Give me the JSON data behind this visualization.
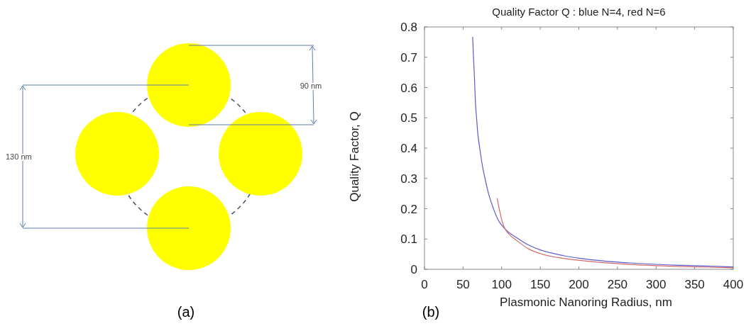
{
  "chart_data": [
    {
      "type": "other",
      "annotations": [
        "130 nm",
        "90 nm",
        "(a)"
      ]
    },
    {
      "type": "line",
      "title": "Quality Factor Q :  blue N=4, red N=6",
      "xlabel": "Plasmonic Nanoring Radius, nm",
      "ylabel": "Quality Factor, Q",
      "xlim": [
        0,
        400
      ],
      "ylim": [
        0,
        0.8
      ],
      "xticks": [
        0,
        50,
        100,
        150,
        200,
        250,
        300,
        350,
        400
      ],
      "yticks": [
        0,
        0.1,
        0.2,
        0.3,
        0.4,
        0.5,
        0.6,
        0.7,
        0.8
      ],
      "grid": false,
      "annotations": [
        "(b)"
      ],
      "series": [
        {
          "color": "#5b5bd0",
          "x": [
            62.4,
            63.5,
            64.8,
            66,
            67.5,
            69,
            71.6,
            74.5,
            78.4,
            83,
            88.7,
            95,
            104.5,
            121,
            135,
            150,
            180,
            215,
            266,
            334,
            400
          ],
          "values": [
            0.767,
            0.7,
            0.63,
            0.55,
            0.5,
            0.45,
            0.4,
            0.35,
            0.3,
            0.25,
            0.205,
            0.165,
            0.133,
            0.102,
            0.08,
            0.064,
            0.045,
            0.032,
            0.021,
            0.013,
            0.008
          ]
        },
        {
          "color": "#d46a6a",
          "x": [
            94.1,
            96,
            98.5,
            101,
            104.5,
            110,
            121,
            135,
            150,
            180,
            215,
            266,
            334,
            400
          ],
          "values": [
            0.235,
            0.21,
            0.18,
            0.155,
            0.133,
            0.115,
            0.092,
            0.067,
            0.052,
            0.036,
            0.026,
            0.016,
            0.009,
            0.005
          ]
        }
      ]
    }
  ]
}
